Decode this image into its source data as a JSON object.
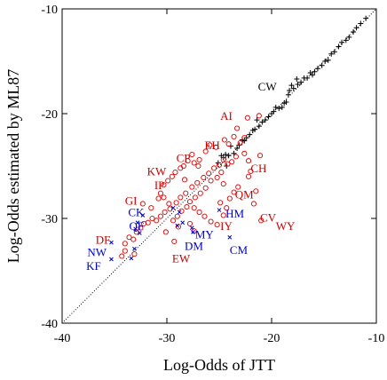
{
  "chart_data": {
    "type": "scatter",
    "xlabel": "Log-Odds of JTT",
    "ylabel": "Log-Odds estimated by ML87",
    "xlim": [
      -40,
      -10
    ],
    "ylim": [
      -40,
      -10
    ],
    "xticks": [
      -40,
      -30,
      -20,
      -10
    ],
    "yticks": [
      -40,
      -30,
      -20,
      -10
    ],
    "xtick_labels": [
      "-40",
      "-30",
      "-20",
      "-10"
    ],
    "ytick_labels": [
      "-40",
      "-30",
      "-20",
      "-10"
    ],
    "grid": false,
    "diagonal": true,
    "colors": {
      "plus": "#000000",
      "circle": "#dd0000",
      "cross": "#0000cc",
      "label_red": "#cc0000",
      "label_blue": "#0000cc",
      "label_black": "#000000"
    },
    "series": [
      {
        "marker": "plus",
        "color": "#000000",
        "points": [
          [
            -11.0,
            -10.9
          ],
          [
            -11.5,
            -11.4
          ],
          [
            -11.9,
            -11.8
          ],
          [
            -12.2,
            -12.2
          ],
          [
            -12.6,
            -12.7
          ],
          [
            -12.9,
            -13.0
          ],
          [
            -13.3,
            -13.2
          ],
          [
            -13.6,
            -13.6
          ],
          [
            -14.0,
            -14.1
          ],
          [
            -14.3,
            -14.3
          ],
          [
            -14.6,
            -14.9
          ],
          [
            -14.9,
            -15.0
          ],
          [
            -15.2,
            -15.4
          ],
          [
            -15.6,
            -15.7
          ],
          [
            -15.9,
            -16.0
          ],
          [
            -16.1,
            -16.3
          ],
          [
            -16.3,
            -16.1
          ],
          [
            -16.6,
            -16.6
          ],
          [
            -16.9,
            -16.6
          ],
          [
            -17.2,
            -17.0
          ],
          [
            -17.5,
            -17.2
          ],
          [
            -17.6,
            -16.7
          ],
          [
            -17.9,
            -17.6
          ],
          [
            -18.1,
            -17.3
          ],
          [
            -18.3,
            -17.8
          ],
          [
            -18.4,
            -18.2
          ],
          [
            -18.6,
            -18.9
          ],
          [
            -18.8,
            -19.0
          ],
          [
            -19.0,
            -19.4
          ],
          [
            -19.3,
            -19.5
          ],
          [
            -19.6,
            -19.4
          ],
          [
            -19.8,
            -19.8
          ],
          [
            -20.0,
            -20.0
          ],
          [
            -20.3,
            -20.3
          ],
          [
            -20.6,
            -20.6
          ],
          [
            -20.9,
            -20.8
          ],
          [
            -21.2,
            -21.2
          ],
          [
            -21.4,
            -20.6
          ],
          [
            -21.6,
            -21.5
          ],
          [
            -21.8,
            -21.6
          ],
          [
            -22.1,
            -22.0
          ],
          [
            -22.4,
            -22.3
          ],
          [
            -22.6,
            -22.6
          ],
          [
            -22.8,
            -22.5
          ],
          [
            -23.1,
            -23.0
          ],
          [
            -23.3,
            -23.3
          ],
          [
            -23.6,
            -23.8
          ],
          [
            -23.9,
            -23.1
          ],
          [
            -24.1,
            -24.0
          ],
          [
            -24.4,
            -23.9
          ],
          [
            -24.6,
            -24.2
          ],
          [
            -24.8,
            -24.0
          ],
          [
            -25.1,
            -24.7
          ],
          [
            -24.3,
            -25.0
          ]
        ]
      },
      {
        "marker": "circle",
        "color": "#dd0000",
        "points": [
          [
            -21.2,
            -20.2
          ],
          [
            -22.3,
            -20.4
          ],
          [
            -23.3,
            -21.4
          ],
          [
            -22.6,
            -22.3
          ],
          [
            -23.0,
            -22.8
          ],
          [
            -23.6,
            -22.2
          ],
          [
            -24.1,
            -22.9
          ],
          [
            -24.5,
            -22.5
          ],
          [
            -25.3,
            -23.2
          ],
          [
            -25.9,
            -23.0
          ],
          [
            -26.3,
            -23.6
          ],
          [
            -26.9,
            -24.4
          ],
          [
            -27.4,
            -24.7
          ],
          [
            -27.6,
            -23.9
          ],
          [
            -28.0,
            -24.5
          ],
          [
            -28.4,
            -25.0
          ],
          [
            -28.7,
            -25.2
          ],
          [
            -29.2,
            -25.6
          ],
          [
            -29.5,
            -26.0
          ],
          [
            -29.9,
            -26.4
          ],
          [
            -30.3,
            -26.8
          ],
          [
            -30.6,
            -27.6
          ],
          [
            -30.3,
            -28.0
          ],
          [
            -29.8,
            -28.6
          ],
          [
            -29.1,
            -28.5
          ],
          [
            -28.7,
            -28.0
          ],
          [
            -28.2,
            -27.6
          ],
          [
            -27.6,
            -27.0
          ],
          [
            -27.1,
            -26.6
          ],
          [
            -26.5,
            -26.1
          ],
          [
            -26.0,
            -25.7
          ],
          [
            -25.5,
            -25.2
          ],
          [
            -25.0,
            -24.9
          ],
          [
            -24.6,
            -24.4
          ],
          [
            -24.2,
            -24.8
          ],
          [
            -23.8,
            -24.6
          ],
          [
            -23.4,
            -24.1
          ],
          [
            -24.8,
            -25.6
          ],
          [
            -25.2,
            -26.1
          ],
          [
            -25.8,
            -26.4
          ],
          [
            -26.3,
            -27.1
          ],
          [
            -26.8,
            -27.6
          ],
          [
            -27.3,
            -28.0
          ],
          [
            -27.8,
            -28.4
          ],
          [
            -28.1,
            -28.9
          ],
          [
            -28.6,
            -29.3
          ],
          [
            -29.0,
            -29.8
          ],
          [
            -29.4,
            -30.2
          ],
          [
            -29.7,
            -29.1
          ],
          [
            -30.2,
            -29.4
          ],
          [
            -30.6,
            -29.8
          ],
          [
            -31.0,
            -30.2
          ],
          [
            -31.4,
            -30.0
          ],
          [
            -31.8,
            -30.4
          ],
          [
            -32.2,
            -30.5
          ],
          [
            -32.5,
            -30.9
          ],
          [
            -32.9,
            -31.3
          ],
          [
            -33.2,
            -32.0
          ],
          [
            -33.6,
            -31.8
          ],
          [
            -34.0,
            -32.4
          ],
          [
            -34.3,
            -33.6
          ],
          [
            -34.0,
            -33.1
          ],
          [
            -33.1,
            -33.4
          ],
          [
            -32.3,
            -28.6
          ],
          [
            -31.5,
            -29.0
          ],
          [
            -30.8,
            -28.1
          ],
          [
            -27.4,
            -29.0
          ],
          [
            -26.9,
            -29.4
          ],
          [
            -26.4,
            -29.8
          ],
          [
            -25.8,
            -30.3
          ],
          [
            -25.2,
            -30.6
          ],
          [
            -24.6,
            -29.7
          ],
          [
            -24.3,
            -29.0
          ],
          [
            -24.0,
            -28.1
          ],
          [
            -23.6,
            -27.5
          ],
          [
            -23.2,
            -27.0
          ],
          [
            -24.9,
            -28.5
          ],
          [
            -27.8,
            -30.5
          ],
          [
            -28.9,
            -30.8
          ],
          [
            -29.3,
            -32.2
          ],
          [
            -27.4,
            -31.2
          ],
          [
            -22.2,
            -26.0
          ],
          [
            -22.0,
            -25.5
          ],
          [
            -21.5,
            -27.4
          ],
          [
            -21.7,
            -28.6
          ],
          [
            -21.0,
            -30.2
          ],
          [
            -22.6,
            -23.8
          ],
          [
            -22.2,
            -24.5
          ],
          [
            -21.1,
            -24.0
          ],
          [
            -27.0,
            -25.0
          ],
          [
            -28.3,
            -26.3
          ],
          [
            -24.6,
            -26.7
          ],
          [
            -30.1,
            -31.3
          ]
        ]
      },
      {
        "marker": "cross",
        "color": "#0000cc",
        "points": [
          [
            -35.3,
            -33.9
          ],
          [
            -35.3,
            -32.3
          ],
          [
            -33.4,
            -33.8
          ],
          [
            -33.0,
            -31.0
          ],
          [
            -32.8,
            -30.4
          ],
          [
            -32.3,
            -29.7
          ],
          [
            -32.6,
            -31.4
          ],
          [
            -29.4,
            -29.0
          ],
          [
            -29.0,
            -30.7
          ],
          [
            -28.5,
            -30.4
          ],
          [
            -27.6,
            -30.9
          ],
          [
            -27.5,
            -31.3
          ],
          [
            -24.0,
            -31.8
          ],
          [
            -25.0,
            -29.2
          ],
          [
            -33.1,
            -32.9
          ],
          [
            -28.8,
            -29.4
          ]
        ]
      }
    ],
    "annotations": [
      {
        "text": "CW",
        "x": -21.3,
        "y": -17.8,
        "color": "#000000"
      },
      {
        "text": "AI",
        "x": -24.9,
        "y": -20.6,
        "color": "#cc0000"
      },
      {
        "text": "EH",
        "x": -26.4,
        "y": -23.4,
        "color": "#cc0000"
      },
      {
        "text": "CP",
        "x": -29.1,
        "y": -24.6,
        "color": "#cc0000"
      },
      {
        "text": "KW",
        "x": -31.9,
        "y": -25.9,
        "color": "#cc0000"
      },
      {
        "text": "IP",
        "x": -31.2,
        "y": -27.2,
        "color": "#cc0000"
      },
      {
        "text": "CH",
        "x": -22.0,
        "y": -25.6,
        "color": "#cc0000"
      },
      {
        "text": "GI",
        "x": -34.0,
        "y": -28.7,
        "color": "#cc0000"
      },
      {
        "text": "QM",
        "x": -23.5,
        "y": -28.1,
        "color": "#cc0000"
      },
      {
        "text": "CK",
        "x": -33.7,
        "y": -29.8,
        "color": "#0000cc"
      },
      {
        "text": "HM",
        "x": -24.4,
        "y": -29.9,
        "color": "#0000cc"
      },
      {
        "text": "CV",
        "x": -21.1,
        "y": -30.3,
        "color": "#cc0000"
      },
      {
        "text": "QF",
        "x": -33.6,
        "y": -31.1,
        "color": "#0000cc"
      },
      {
        "text": "IY",
        "x": -24.9,
        "y": -31.1,
        "color": "#cc0000"
      },
      {
        "text": "WY",
        "x": -19.6,
        "y": -31.1,
        "color": "#cc0000"
      },
      {
        "text": "MY",
        "x": -27.3,
        "y": -31.9,
        "color": "#0000cc"
      },
      {
        "text": "DF",
        "x": -36.8,
        "y": -32.4,
        "color": "#cc0000"
      },
      {
        "text": "DM",
        "x": -28.3,
        "y": -33.0,
        "color": "#0000cc"
      },
      {
        "text": "CM",
        "x": -24.0,
        "y": -33.4,
        "color": "#0000cc"
      },
      {
        "text": "NW",
        "x": -37.6,
        "y": -33.6,
        "color": "#0000cc"
      },
      {
        "text": "EW",
        "x": -29.5,
        "y": -34.2,
        "color": "#cc0000"
      },
      {
        "text": "KF",
        "x": -37.7,
        "y": -34.9,
        "color": "#0000cc"
      }
    ]
  }
}
